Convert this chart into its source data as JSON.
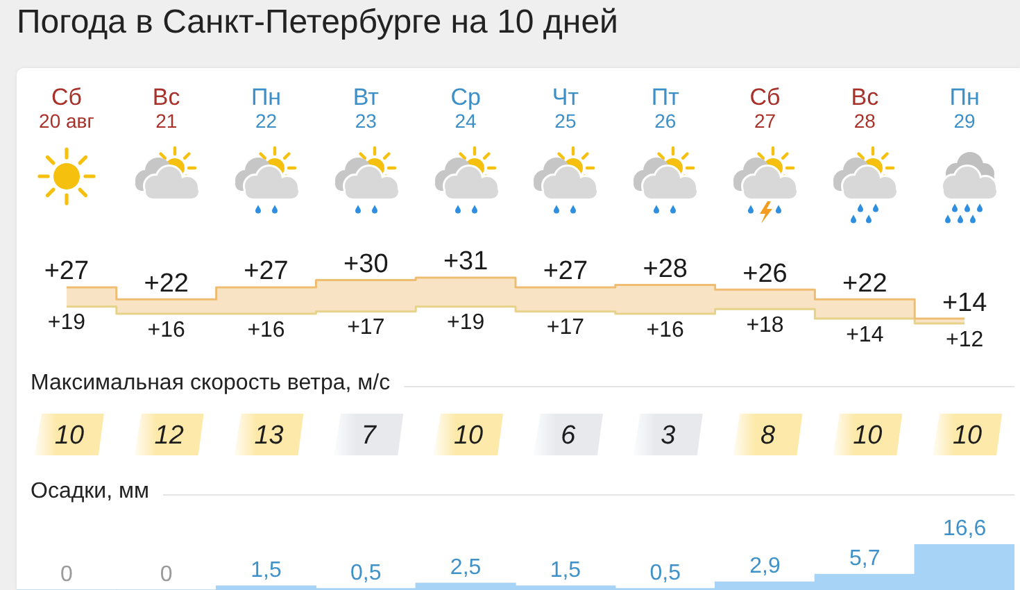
{
  "chart_data": [
    {
      "type": "step",
      "title": "Погода в Санкт-Петербурге на 10 дней",
      "categories": [
        "Сб\n20 авг",
        "Вс\n21",
        "Пн\n22",
        "Вт\n23",
        "Ср\n24",
        "Чт\n25",
        "Пт\n26",
        "Сб\n27",
        "Вс\n28",
        "Пн\n29"
      ],
      "series": [
        {
          "color": "#efbd72",
          "values": [
            27,
            22,
            27,
            30,
            31,
            27,
            28,
            26,
            22,
            14
          ],
          "value_labels": [
            "+27",
            "+22",
            "+27",
            "+30",
            "+31",
            "+27",
            "+28",
            "+26",
            "+22",
            "+14"
          ]
        },
        {
          "color": "#e6d389",
          "values": [
            19,
            16,
            16,
            17,
            19,
            17,
            16,
            18,
            14,
            12
          ],
          "value_labels": [
            "+19",
            "+16",
            "+16",
            "+17",
            "+19",
            "+17",
            "+16",
            "+18",
            "+14",
            "+12"
          ]
        }
      ]
    },
    {
      "type": "other",
      "title": "Максимальная скорость ветра, м/с",
      "data_labels": true,
      "values": [
        10,
        12,
        13,
        7,
        10,
        6,
        3,
        8,
        10,
        10
      ],
      "colors": [
        "#fde9a9",
        "#fde9a9",
        "#fde9a9",
        "#e7e9ed",
        "#fde9a9",
        "#e7e9ed",
        "#e7e9ed",
        "#fde9a9",
        "#fde9a9",
        "#fde9a9"
      ]
    },
    {
      "type": "bar",
      "title": "Осадки, мм",
      "categories": [
        null,
        null,
        null,
        null,
        null,
        null,
        null,
        null,
        null,
        null
      ],
      "values": [
        0,
        0,
        1.5,
        0.5,
        2.5,
        1.5,
        0.5,
        2.9,
        5.7,
        16.6
      ],
      "value_labels": [
        "0",
        "0",
        "1,5",
        "0,5",
        "2,5",
        "1,5",
        "0,5",
        "2,9",
        "5,7",
        "16,6"
      ],
      "color": "#a7d3f6"
    }
  ]
}
